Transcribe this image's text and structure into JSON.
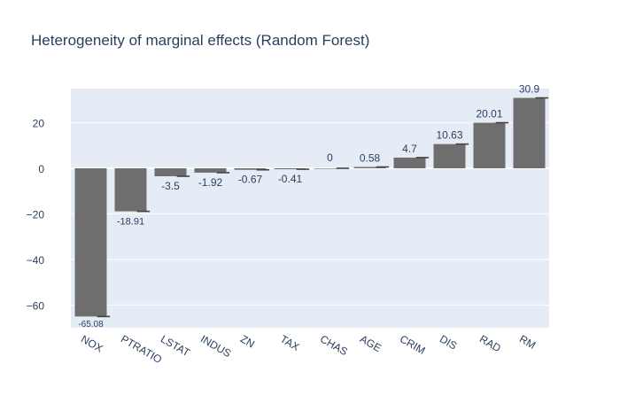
{
  "chart_data": {
    "type": "bar",
    "title": "Heterogeneity of marginal effects (Random Forest)",
    "xlabel": "",
    "ylabel": "",
    "categories": [
      "NOX",
      "PTRATIO",
      "LSTAT",
      "INDUS",
      "ZN",
      "TAX",
      "CHAS",
      "AGE",
      "CRIM",
      "DIS",
      "RAD",
      "RM"
    ],
    "values": [
      -65.08,
      -18.91,
      -3.5,
      -1.92,
      -0.67,
      -0.41,
      0,
      0.58,
      4.7,
      10.63,
      20.01,
      30.9
    ],
    "value_labels": [
      "-65.08",
      "-18.91",
      "-3.5",
      "-1.92",
      "-0.67",
      "-0.41",
      "0",
      "0.58",
      "4.7",
      "10.63",
      "20.01",
      "30.9"
    ],
    "y_ticks": [
      20,
      0,
      -20,
      -40,
      -60
    ],
    "y_tick_labels": [
      "20",
      "0",
      "−20",
      "−40",
      "−60"
    ],
    "ylim": [
      -70,
      35
    ],
    "grid": true,
    "legend": "none",
    "colors": {
      "bar": "#6e6e6e",
      "plot_background": "#e5ecf6",
      "grid": "#ffffff",
      "text": "#2a3f5f",
      "error_mark": "#444444"
    }
  }
}
